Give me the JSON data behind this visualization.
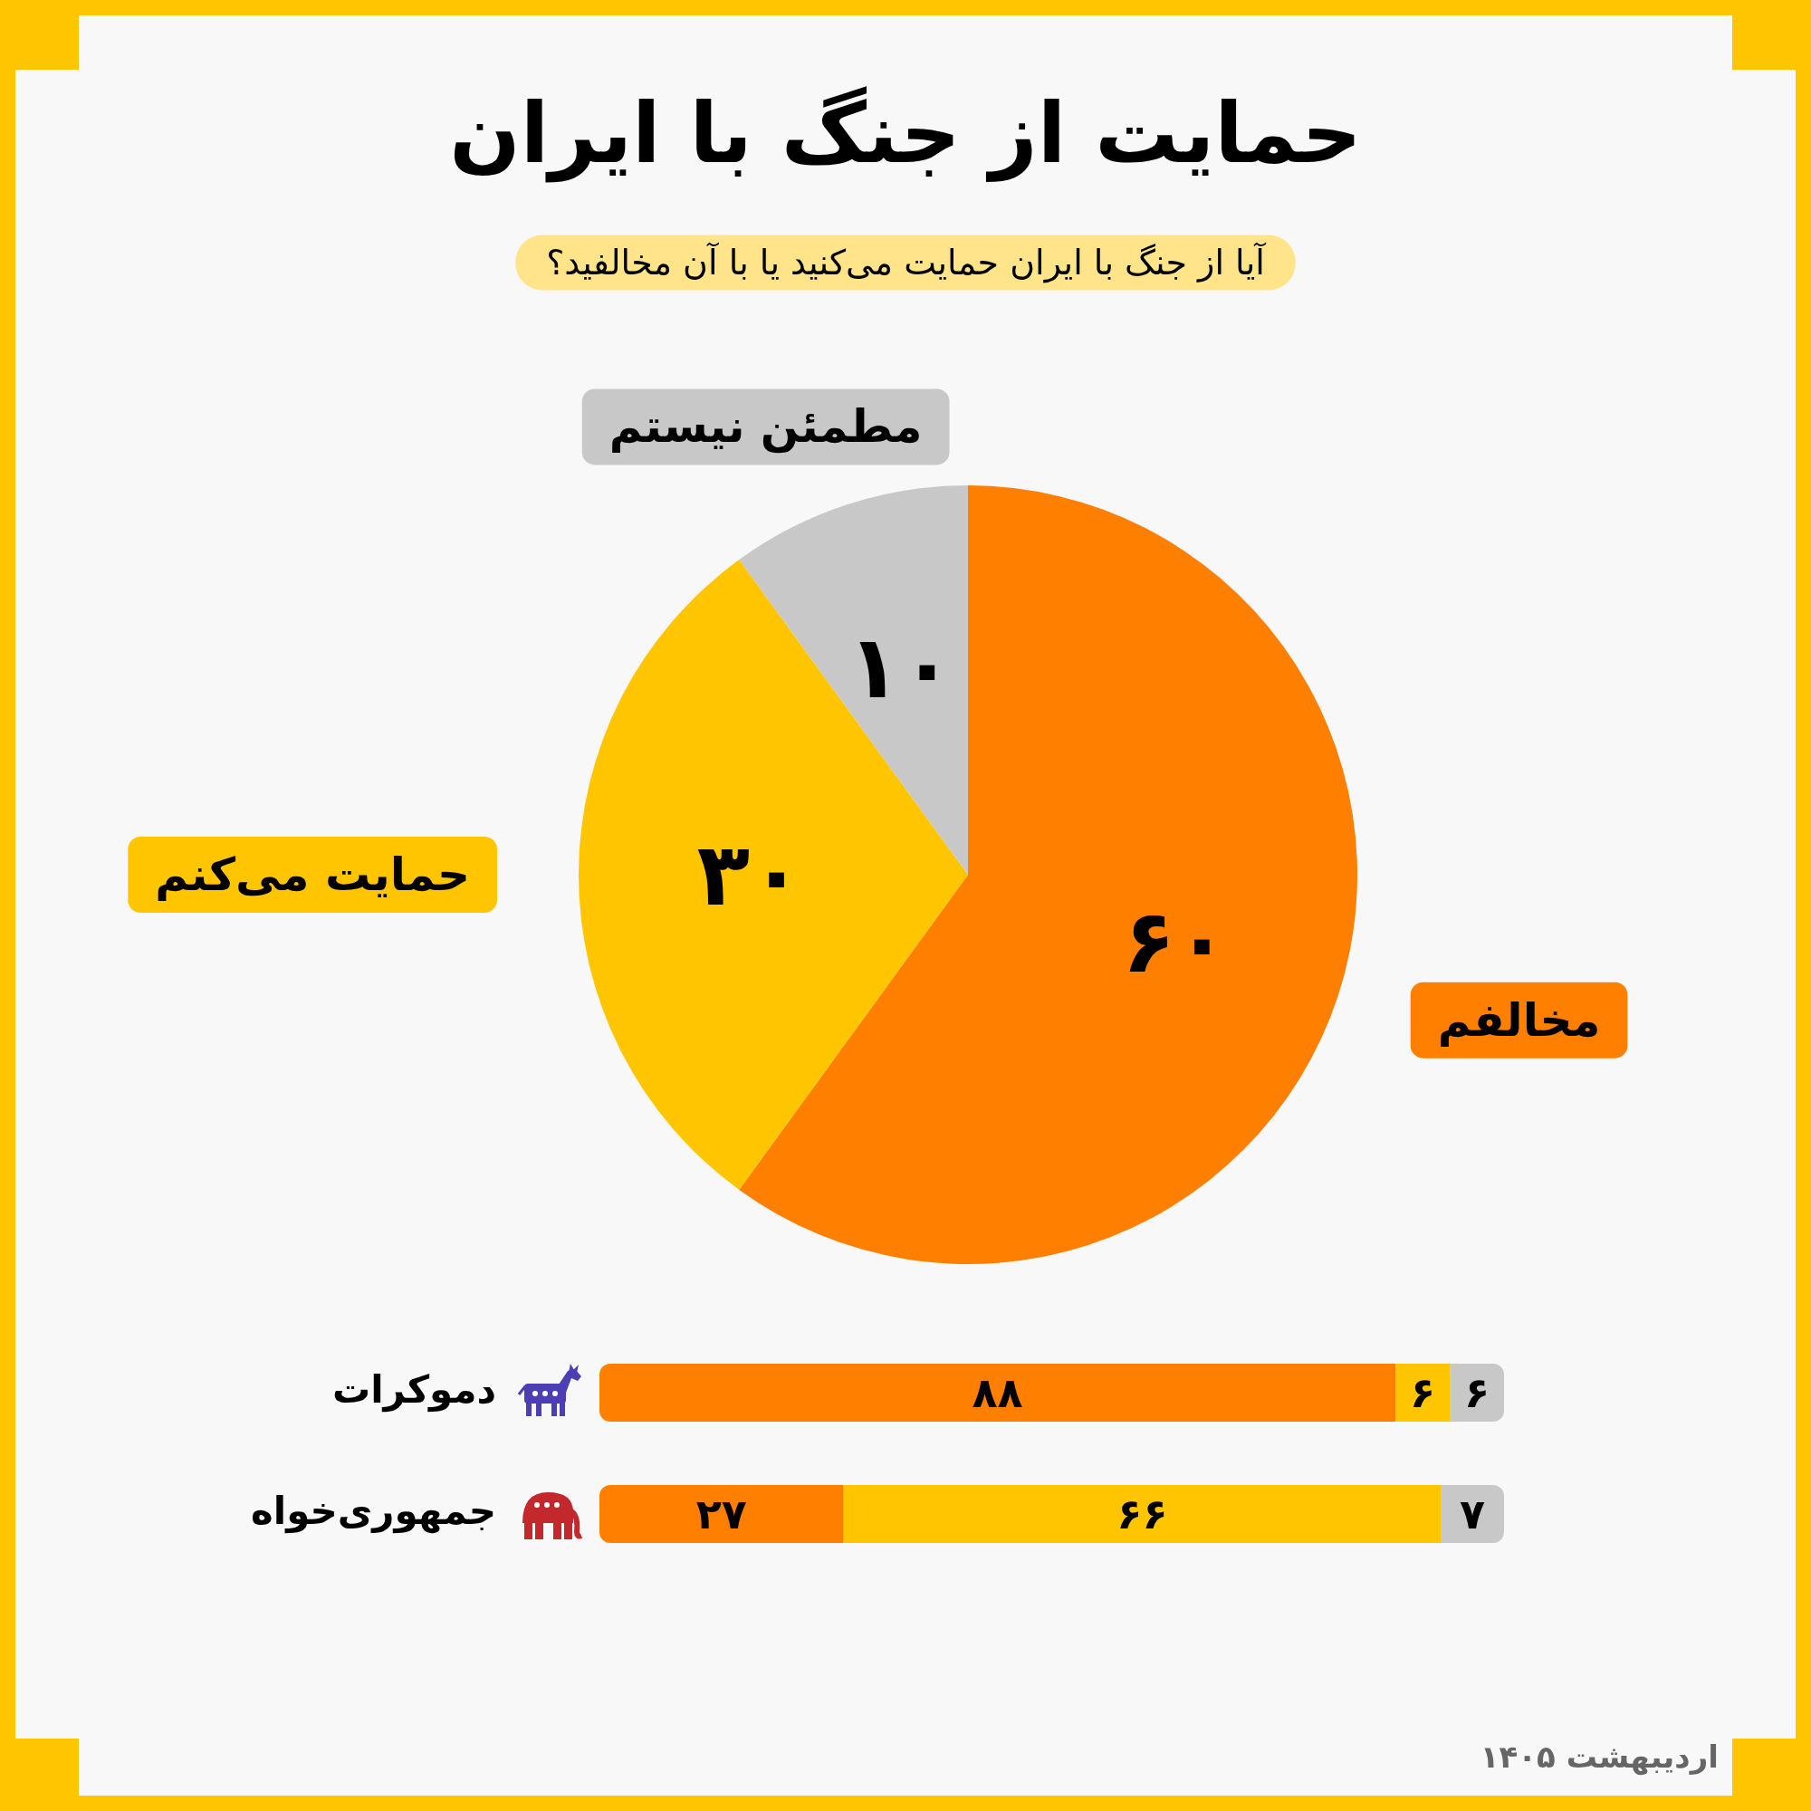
{
  "chart_data": [
    {
      "type": "pie",
      "title": "حمایت از جنگ با ایران",
      "subtitle": "آیا از جنگ با ایران حمایت می‌کنید یا با آن مخالفید؟",
      "categories": [
        "مخالفم",
        "حمایت می‌کنم",
        "مطمئن نیستم"
      ],
      "values": [
        60,
        30,
        10
      ],
      "colors": [
        "#ff8000",
        "#ffc600",
        "#c8c8c8"
      ],
      "value_labels": [
        "۶۰",
        "۳۰",
        "۱۰"
      ]
    },
    {
      "type": "bar",
      "orientation": "horizontal",
      "stacked": true,
      "categories": [
        "دموکرات",
        "جمهوری‌خواه"
      ],
      "series": [
        {
          "color": "#ff8000",
          "values": [
            88,
            27
          ],
          "value_labels": [
            "۸۸",
            "۲۷"
          ]
        },
        {
          "color": "#ffc600",
          "values": [
            6,
            66
          ],
          "value_labels": [
            "۶",
            "۶۶"
          ]
        },
        {
          "color": "#c8c8c8",
          "values": [
            6,
            7
          ],
          "value_labels": [
            "۶",
            "۷"
          ]
        }
      ],
      "xlim": [
        0,
        100
      ],
      "tick_labels": "y",
      "annotations": [
        "اردیبهشت ۱۴۰۵"
      ]
    }
  ]
}
